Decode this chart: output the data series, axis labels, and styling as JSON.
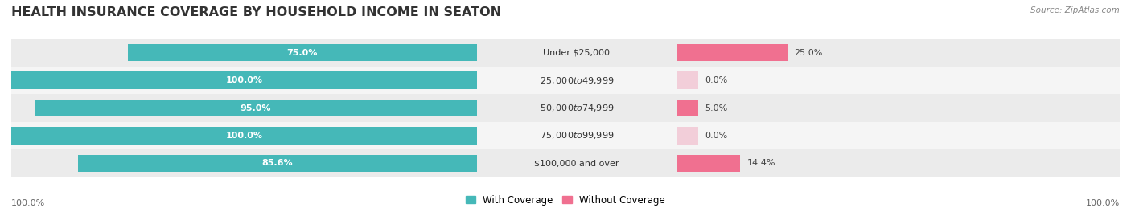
{
  "title": "HEALTH INSURANCE COVERAGE BY HOUSEHOLD INCOME IN SEATON",
  "source": "Source: ZipAtlas.com",
  "categories": [
    "Under $25,000",
    "$25,000 to $49,999",
    "$50,000 to $74,999",
    "$75,000 to $99,999",
    "$100,000 and over"
  ],
  "with_coverage": [
    75.0,
    100.0,
    95.0,
    100.0,
    85.6
  ],
  "without_coverage": [
    25.0,
    0.0,
    5.0,
    0.0,
    14.4
  ],
  "color_with": "#45b8b8",
  "color_without": "#f07090",
  "color_without_light": "#f0a0b8",
  "row_colors_odd": "#ebebeb",
  "row_colors_even": "#f5f5f5",
  "title_fontsize": 11.5,
  "bar_label_fontsize": 8.0,
  "cat_label_fontsize": 8.0,
  "legend_fontsize": 8.5,
  "source_fontsize": 7.5,
  "bar_height": 0.62,
  "figsize": [
    14.06,
    2.69
  ],
  "dpi": 100
}
